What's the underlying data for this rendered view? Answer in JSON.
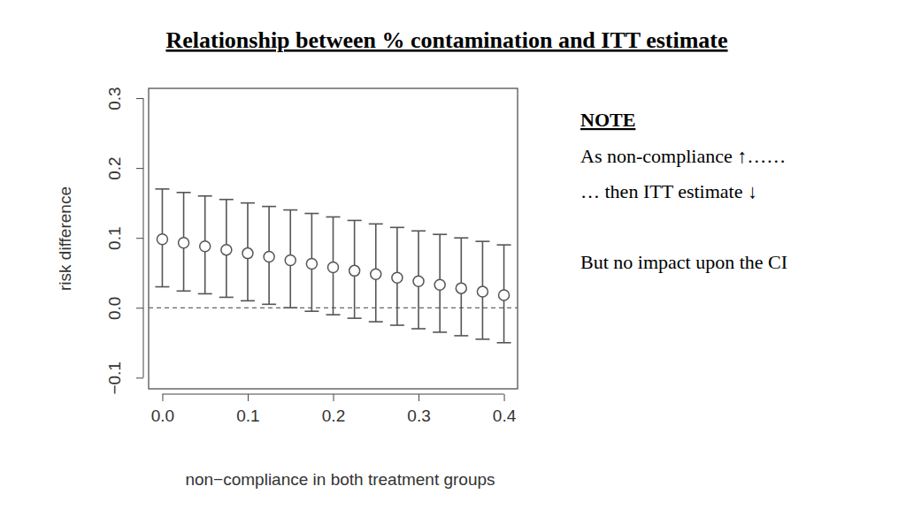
{
  "chart_data": {
    "type": "errorbar",
    "title": "Relationship between % contamination and ITT estimate",
    "x_label": "non−compliance in both treatment groups",
    "y_label": "risk difference",
    "note_title": "NOTE",
    "annotations": [
      "As non-compliance ↑……",
      "… then ITT estimate ↓",
      "But no impact upon the CI"
    ],
    "x": [
      0,
      0.025,
      0.05,
      0.075,
      0.1,
      0.125,
      0.15,
      0.175,
      0.2,
      0.225,
      0.25,
      0.275,
      0.3,
      0.325,
      0.35,
      0.375,
      0.4
    ],
    "series": [
      {
        "name": "risk difference",
        "color": "#555555",
        "marker": "open-circle",
        "values": [
          0.098,
          0.093,
          0.088,
          0.083,
          0.078,
          0.073,
          0.068,
          0.063,
          0.058,
          0.053,
          0.048,
          0.043,
          0.038,
          0.033,
          0.028,
          0.023,
          0.018
        ],
        "lower": [
          0.03,
          0.024,
          0.02,
          0.015,
          0.01,
          0.005,
          0.0,
          -0.005,
          -0.01,
          -0.015,
          -0.02,
          -0.025,
          -0.03,
          -0.035,
          -0.04,
          -0.045,
          -0.05
        ],
        "upper": [
          0.17,
          0.165,
          0.16,
          0.155,
          0.15,
          0.145,
          0.14,
          0.135,
          0.13,
          0.125,
          0.12,
          0.115,
          0.11,
          0.105,
          0.1,
          0.095,
          0.09
        ]
      }
    ],
    "reference_line": 0,
    "xlim": [
      -0.016,
      0.416
    ],
    "ylim": [
      -0.116,
      0.314
    ],
    "xticks": [
      {
        "value": 0,
        "label": "0.0"
      },
      0.1,
      0.2,
      0.3,
      0.4
    ],
    "yticks": [
      {
        "value": -0.1,
        "label": "−0.1"
      },
      {
        "value": 0,
        "label": "0.0"
      },
      0.1,
      0.2,
      0.3
    ],
    "grid": false
  }
}
